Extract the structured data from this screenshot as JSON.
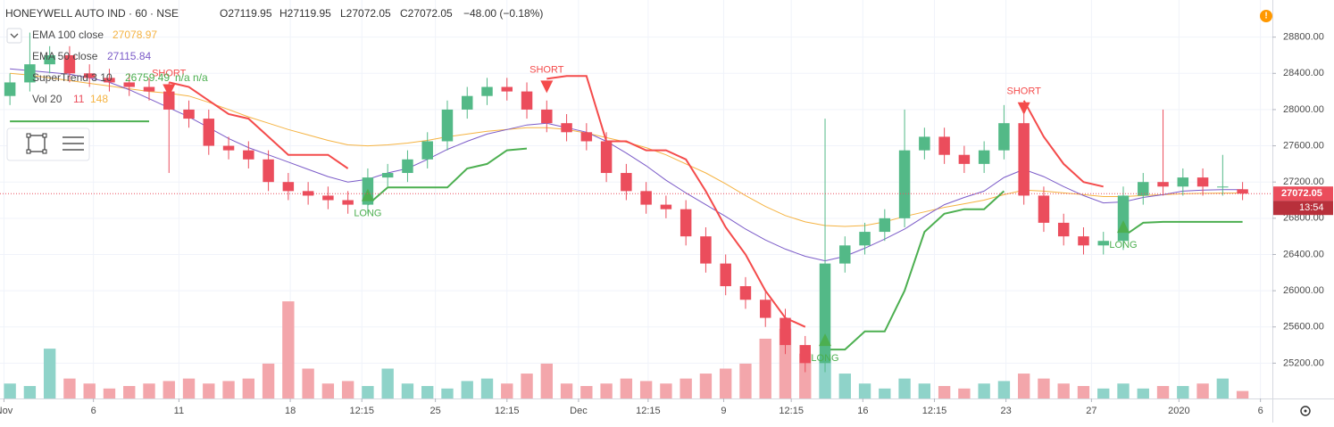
{
  "chart_data": {
    "type": "candlestick",
    "header": {
      "symbol": "HONEYWELL AUTO IND · 60 · NSE",
      "open": "O27119.95",
      "high": "H27119.95",
      "low": "L27072.05",
      "close": "C27072.05",
      "change": "−48.00 (−0.18%)"
    },
    "xlim": [
      -0.5,
      63.5
    ],
    "xticks": [
      {
        "value": -0.3,
        "label": "Nov"
      },
      {
        "value": 4.2,
        "label": "6"
      },
      {
        "value": 8.5,
        "label": "11"
      },
      {
        "value": 14.1,
        "label": "18"
      },
      {
        "value": 17.7,
        "label": "12:15"
      },
      {
        "value": 21.4,
        "label": "25"
      },
      {
        "value": 25,
        "label": "12:15"
      },
      {
        "value": 28.6,
        "label": "Dec"
      },
      {
        "value": 32.1,
        "label": "12:15"
      },
      {
        "value": 35.9,
        "label": "9"
      },
      {
        "value": 39.3,
        "label": "12:15"
      },
      {
        "value": 42.9,
        "label": "16"
      },
      {
        "value": 46.5,
        "label": "12:15"
      },
      {
        "value": 50.1,
        "label": "23"
      },
      {
        "value": 54.4,
        "label": "27"
      },
      {
        "value": 58.8,
        "label": "2020"
      },
      {
        "value": 62.9,
        "label": "6"
      }
    ],
    "ylim": [
      24810,
      29210
    ],
    "yticks": [
      {
        "value": 25200,
        "label": "25200.00"
      },
      {
        "value": 25600,
        "label": "25600.00"
      },
      {
        "value": 26000,
        "label": "26000.00"
      },
      {
        "value": 26400,
        "label": "26400.00"
      },
      {
        "value": 26800,
        "label": "26800.00"
      },
      {
        "value": 27200,
        "label": "27200.00"
      },
      {
        "value": 27600,
        "label": "27600.00"
      },
      {
        "value": 28000,
        "label": "28000.00"
      },
      {
        "value": 28400,
        "label": "28400.00"
      },
      {
        "value": 28800,
        "label": "28800.00"
      }
    ],
    "up_color": "#53b987",
    "down_color": "#eb4d5c",
    "open": [
      28150,
      28300,
      28500,
      28600,
      28400,
      28350,
      28300,
      28250,
      28200,
      28000,
      27900,
      27600,
      27550,
      27450,
      27200,
      27100,
      27050,
      27000,
      26950,
      27250,
      27300,
      27450,
      27650,
      28000,
      28150,
      28250,
      28200,
      28000,
      27850,
      27750,
      27650,
      27300,
      27100,
      26950,
      26900,
      26600,
      26300,
      26050,
      25900,
      25700,
      25400,
      25200,
      26300,
      26500,
      26650,
      26800,
      27550,
      27700,
      27500,
      27400,
      27550,
      27850,
      27050,
      26750,
      26600,
      26500,
      26550,
      27050,
      27200,
      27150,
      27250,
      27150,
      27119.95
    ],
    "high": [
      28400,
      28850,
      28700,
      28700,
      28500,
      28450,
      28400,
      28350,
      28300,
      28100,
      28000,
      27700,
      27650,
      27550,
      27300,
      27200,
      27150,
      27100,
      27350,
      27400,
      27550,
      27750,
      28100,
      28250,
      28350,
      28350,
      28300,
      28100,
      27950,
      27850,
      27750,
      27400,
      27200,
      27050,
      27000,
      26700,
      26400,
      26150,
      26000,
      25800,
      25500,
      27900,
      26600,
      26750,
      26900,
      28000,
      27800,
      27800,
      27600,
      27650,
      28050,
      27950,
      27150,
      26850,
      26700,
      26650,
      27150,
      27300,
      28000,
      27350,
      27350,
      27500,
      27200
    ],
    "low": [
      28050,
      28200,
      28400,
      28300,
      28250,
      28200,
      28150,
      28100,
      27300,
      27800,
      27500,
      27450,
      27350,
      27100,
      27000,
      26950,
      26900,
      26850,
      26850,
      27150,
      27200,
      27350,
      27550,
      27900,
      28050,
      28100,
      27900,
      27750,
      27650,
      27550,
      27200,
      27000,
      26850,
      26800,
      26500,
      26200,
      25950,
      25800,
      25600,
      25300,
      25100,
      25100,
      26200,
      26400,
      26550,
      26700,
      27450,
      27400,
      27300,
      27300,
      27450,
      26950,
      26650,
      26500,
      26400,
      26400,
      26450,
      26950,
      27050,
      27050,
      27050,
      27050,
      27000
    ],
    "close": [
      28300,
      28500,
      28600,
      28400,
      28350,
      28300,
      28250,
      28200,
      28000,
      27900,
      27600,
      27550,
      27450,
      27200,
      27100,
      27050,
      27000,
      26950,
      27250,
      27300,
      27450,
      27650,
      28000,
      28150,
      28250,
      28200,
      28000,
      27850,
      27750,
      27650,
      27300,
      27100,
      26950,
      26900,
      26600,
      26300,
      26050,
      25900,
      25700,
      25400,
      25200,
      26300,
      26500,
      26650,
      26800,
      27550,
      27700,
      27500,
      27400,
      27550,
      27850,
      27050,
      26750,
      26600,
      26500,
      26550,
      27050,
      27200,
      27150,
      27250,
      27150,
      27150,
      27072.05
    ],
    "countdown": "13:54",
    "ema100": {
      "name": "EMA 100 close",
      "last_label": "27078.97",
      "color": "#f5b342",
      "values": [
        28400,
        28380,
        28350,
        28320,
        28290,
        28260,
        28230,
        28200,
        28180,
        28150,
        28080,
        28000,
        27920,
        27850,
        27780,
        27720,
        27660,
        27610,
        27600,
        27610,
        27630,
        27660,
        27700,
        27730,
        27760,
        27780,
        27800,
        27800,
        27780,
        27740,
        27690,
        27640,
        27580,
        27500,
        27400,
        27300,
        27180,
        27050,
        26930,
        26830,
        26760,
        26720,
        26710,
        26720,
        26760,
        26820,
        26870,
        26920,
        26960,
        27000,
        27060,
        27110,
        27100,
        27080,
        27060,
        27040,
        27040,
        27050,
        27060,
        27070,
        27075,
        27078,
        27078.97
      ]
    },
    "ema50": {
      "name": "EMA 50 close",
      "last_label": "27115.84",
      "color": "#7b5bc8",
      "values": [
        28450,
        28430,
        28410,
        28390,
        28350,
        28300,
        28220,
        28120,
        28020,
        27920,
        27800,
        27680,
        27580,
        27500,
        27420,
        27340,
        27260,
        27200,
        27230,
        27300,
        27350,
        27450,
        27560,
        27650,
        27730,
        27780,
        27830,
        27850,
        27800,
        27750,
        27650,
        27520,
        27380,
        27220,
        27080,
        26950,
        26820,
        26680,
        26560,
        26460,
        26380,
        26330,
        26380,
        26470,
        26570,
        26680,
        26820,
        26950,
        27030,
        27100,
        27250,
        27340,
        27260,
        27150,
        27050,
        26970,
        26980,
        27030,
        27060,
        27100,
        27110,
        27115,
        27115.84
      ]
    },
    "supertrend": {
      "name": "SuperTrend 3 10",
      "last_label": "26759.49",
      "extra": "n/a n/a",
      "up_color": "#4caf50",
      "down_color": "#f44b4b",
      "up": [
        27870,
        27870,
        27870,
        27870,
        27870,
        27870,
        27870,
        27870,
        null,
        null,
        null,
        null,
        null,
        null,
        null,
        null,
        null,
        null,
        26950,
        27140,
        27140,
        27140,
        27140,
        27350,
        27400,
        27550,
        27570,
        null,
        null,
        null,
        null,
        null,
        null,
        null,
        null,
        null,
        null,
        null,
        null,
        null,
        null,
        25350,
        25350,
        25550,
        25550,
        26000,
        26650,
        26850,
        26900,
        26900,
        27100,
        null,
        null,
        null,
        null,
        null,
        26600,
        26750,
        26760,
        26760,
        26760,
        26760,
        26759.49
      ],
      "down": [
        null,
        null,
        null,
        null,
        null,
        null,
        null,
        null,
        28300,
        28250,
        28100,
        27950,
        27900,
        27700,
        27500,
        27500,
        27500,
        27350,
        null,
        null,
        null,
        null,
        null,
        null,
        null,
        null,
        null,
        28340,
        28370,
        28370,
        27650,
        27650,
        27550,
        27550,
        27450,
        27100,
        26700,
        26400,
        26000,
        25700,
        25600,
        null,
        null,
        null,
        null,
        null,
        null,
        null,
        null,
        null,
        null,
        28100,
        27700,
        27400,
        27200,
        27150,
        null,
        null,
        null,
        null,
        null,
        null,
        null
      ]
    },
    "signals": [
      {
        "text": "SHORT",
        "x": 8,
        "side": "down"
      },
      {
        "text": "LONG",
        "x": 18,
        "side": "up"
      },
      {
        "text": "SHORT",
        "x": 27,
        "side": "down"
      },
      {
        "text": "LONG",
        "x": 41,
        "side": "up"
      },
      {
        "text": "SHORT",
        "x": 51,
        "side": "down"
      },
      {
        "text": "LONG",
        "x": 56,
        "side": "up"
      }
    ],
    "volume": {
      "name": "Vol 20",
      "last_label": "11",
      "ma_label": "148",
      "lim": [
        0,
        8000
      ],
      "up_color": "#8fd3c9",
      "down_color": "#f3a6ab",
      "values": [
        300,
        250,
        1000,
        400,
        300,
        200,
        250,
        300,
        350,
        400,
        300,
        350,
        400,
        700,
        1950,
        600,
        300,
        350,
        250,
        600,
        300,
        250,
        200,
        350,
        400,
        300,
        500,
        700,
        300,
        250,
        300,
        400,
        350,
        300,
        400,
        500,
        600,
        700,
        1200,
        1400,
        900,
        800,
        500,
        300,
        200,
        400,
        300,
        250,
        200,
        300,
        350,
        500,
        400,
        300,
        250,
        200,
        300,
        200,
        250,
        250,
        300,
        400,
        150
      ]
    }
  }
}
